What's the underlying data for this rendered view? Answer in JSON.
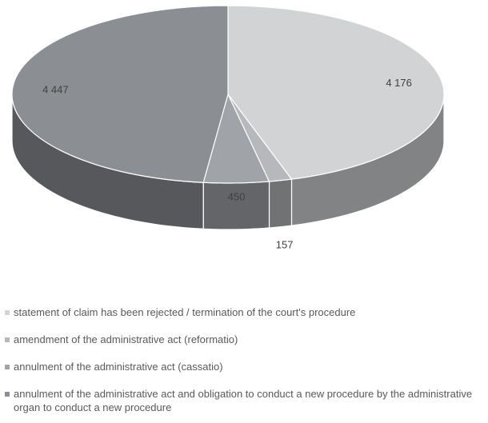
{
  "chart_data": {
    "type": "pie3d",
    "categories": [
      "statement of claim has been rejected / termination of the court's procedure",
      "amendment of the administrative act (reformatio)",
      "annulment of the administrative act (cassatio)",
      "annulment of the administrative act and obligation to conduct a new procedure by the administrative organ to conduct a new procedure"
    ],
    "values": [
      4176,
      157,
      450,
      4447
    ],
    "value_labels": [
      "4 176",
      "157",
      "450",
      "4 447"
    ],
    "colors": [
      "#d2d3d5",
      "#b6b8bb",
      "#a0a3a7",
      "#8b8e92"
    ],
    "legend": "bottom"
  }
}
